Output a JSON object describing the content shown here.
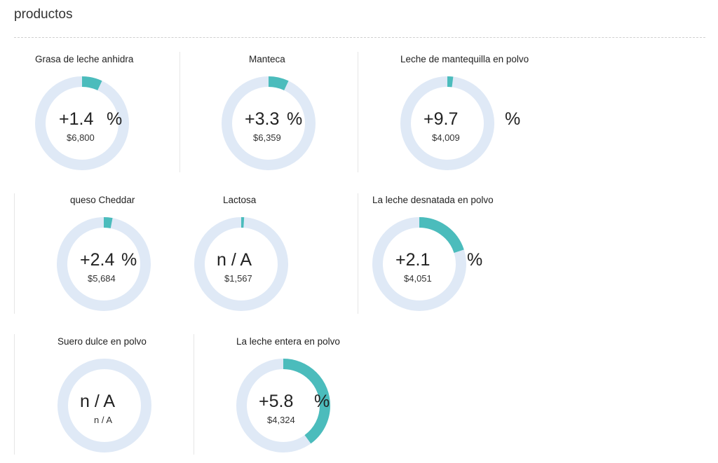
{
  "page": {
    "title": "productos"
  },
  "colors": {
    "track": "#dfe9f6",
    "accent": "#4bbcbc"
  },
  "products": [
    {
      "name": "Grasa de leche anhidra",
      "change": "+1.4",
      "pct_sign": "%",
      "price": "$6,800",
      "gauge_fraction": 0.07
    },
    {
      "name": "Manteca",
      "change": "+3.3",
      "pct_sign": "%",
      "price": "$6,359",
      "gauge_fraction": 0.07
    },
    {
      "name": "Leche de mantequilla en polvo",
      "change": "+9.7",
      "pct_sign": "%",
      "price": "$4,009",
      "gauge_fraction": 0.02
    },
    {
      "name": "queso Cheddar",
      "change": "+2.4",
      "pct_sign": "%",
      "price": "$5,684",
      "gauge_fraction": 0.03
    },
    {
      "name": "Lactosa",
      "change": "n / A",
      "pct_sign": "",
      "price": "$1,567",
      "gauge_fraction": 0.01
    },
    {
      "name": "La leche desnatada en polvo",
      "change": "+2.1",
      "pct_sign": "%",
      "price": "$4,051",
      "gauge_fraction": 0.2
    },
    {
      "name": "Suero dulce en polvo",
      "change": "n / A",
      "pct_sign": "",
      "price": "n / A",
      "gauge_fraction": 0
    },
    {
      "name": "La leche entera en polvo",
      "change": "+5.8",
      "pct_sign": "%",
      "price": "$4,324",
      "gauge_fraction": 0.4
    }
  ]
}
